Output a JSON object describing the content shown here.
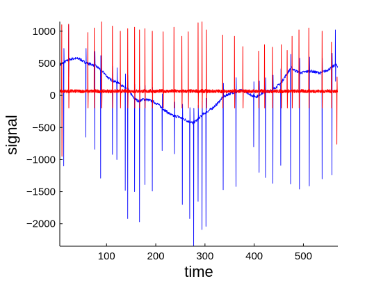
{
  "chart_data": {
    "type": "line",
    "title": "",
    "xlabel": "time",
    "ylabel": "signal",
    "xlim": [
      5,
      570
    ],
    "ylim": [
      -2350,
      1150
    ],
    "xticks": [
      100,
      200,
      300,
      400,
      500
    ],
    "yticks": [
      1000,
      500,
      0,
      -500,
      -1000,
      -1500,
      -2000
    ],
    "xtick_labels": [
      "100",
      "200",
      "300",
      "400",
      "500"
    ],
    "ytick_labels": [
      "1000",
      "500",
      "0",
      "−500",
      "−1000",
      "−1500",
      "−2000"
    ],
    "grid": false,
    "series": [
      {
        "color": "#0000ff",
        "baseline": {
          "x": [
            5,
            15,
            25,
            35,
            45,
            55,
            65,
            75,
            85,
            95,
            105,
            115,
            125,
            135,
            145,
            155,
            165,
            175,
            185,
            195,
            205,
            215,
            225,
            235,
            245,
            255,
            265,
            275,
            285,
            295,
            305,
            315,
            325,
            335,
            345,
            355,
            365,
            375,
            385,
            395,
            405,
            415,
            425,
            435,
            445,
            455,
            465,
            475,
            485,
            495,
            505,
            515,
            525,
            535,
            545,
            555,
            565,
            570
          ],
          "y": [
            470,
            520,
            560,
            575,
            570,
            520,
            490,
            470,
            420,
            350,
            260,
            220,
            200,
            130,
            80,
            -40,
            -90,
            -60,
            -70,
            -100,
            -140,
            -210,
            -270,
            -320,
            -330,
            -360,
            -400,
            -430,
            -380,
            -300,
            -250,
            -200,
            -130,
            -40,
            10,
            40,
            60,
            80,
            50,
            0,
            -20,
            30,
            60,
            80,
            130,
            200,
            320,
            430,
            380,
            350,
            370,
            380,
            360,
            350,
            380,
            420,
            480,
            450
          ]
        },
        "spikes": [
          {
            "x": 13,
            "y": -1100
          },
          {
            "x": 23,
            "y": 1100
          },
          {
            "x": 58,
            "y": -650
          },
          {
            "x": 76,
            "y": -840
          },
          {
            "x": 88,
            "y": -1290
          },
          {
            "x": 112,
            "y": -920
          },
          {
            "x": 121,
            "y": -1000
          },
          {
            "x": 138,
            "y": -1480
          },
          {
            "x": 143,
            "y": -1920
          },
          {
            "x": 157,
            "y": -1500
          },
          {
            "x": 167,
            "y": -1970
          },
          {
            "x": 178,
            "y": -1390
          },
          {
            "x": 193,
            "y": -1490
          },
          {
            "x": 213,
            "y": -860
          },
          {
            "x": 238,
            "y": -910
          },
          {
            "x": 254,
            "y": -1700
          },
          {
            "x": 269,
            "y": -1920
          },
          {
            "x": 277,
            "y": -2350
          },
          {
            "x": 286,
            "y": -1650
          },
          {
            "x": 294,
            "y": -2090
          },
          {
            "x": 302,
            "y": -2040
          },
          {
            "x": 337,
            "y": -1470
          },
          {
            "x": 363,
            "y": -1420
          },
          {
            "x": 399,
            "y": -800
          },
          {
            "x": 410,
            "y": -1200
          },
          {
            "x": 423,
            "y": -1280
          },
          {
            "x": 438,
            "y": -1370
          },
          {
            "x": 454,
            "y": -1090
          },
          {
            "x": 474,
            "y": -1380
          },
          {
            "x": 492,
            "y": -1460
          },
          {
            "x": 512,
            "y": -1410
          },
          {
            "x": 538,
            "y": -1300
          },
          {
            "x": 558,
            "y": -1240
          },
          {
            "x": 565,
            "y": 1020
          }
        ]
      },
      {
        "color": "#ff0000",
        "baseline_level": 65,
        "noise_amplitude": 28,
        "spikes": [
          {
            "x": 9,
            "y": 1100,
            "trough": -950
          },
          {
            "x": 23,
            "y": 1110
          },
          {
            "x": 62,
            "y": 980
          },
          {
            "x": 75,
            "y": 1050
          },
          {
            "x": 90,
            "y": 1160
          },
          {
            "x": 112,
            "y": 1080
          },
          {
            "x": 128,
            "y": 1000
          },
          {
            "x": 143,
            "y": 1040
          },
          {
            "x": 157,
            "y": 1060
          },
          {
            "x": 167,
            "y": 1020
          },
          {
            "x": 178,
            "y": 1040
          },
          {
            "x": 193,
            "y": 1000
          },
          {
            "x": 215,
            "y": 990
          },
          {
            "x": 237,
            "y": 1060
          },
          {
            "x": 253,
            "y": 920
          },
          {
            "x": 266,
            "y": 990
          },
          {
            "x": 286,
            "y": 1130
          },
          {
            "x": 294,
            "y": 1160
          },
          {
            "x": 303,
            "y": 1020
          },
          {
            "x": 336,
            "y": 940
          },
          {
            "x": 360,
            "y": 920
          },
          {
            "x": 377,
            "y": 760
          },
          {
            "x": 409,
            "y": 690
          },
          {
            "x": 421,
            "y": 790
          },
          {
            "x": 437,
            "y": 750
          },
          {
            "x": 455,
            "y": 790
          },
          {
            "x": 467,
            "y": 700
          },
          {
            "x": 477,
            "y": 920
          },
          {
            "x": 491,
            "y": 1020
          },
          {
            "x": 511,
            "y": 1050
          },
          {
            "x": 538,
            "y": 1000
          },
          {
            "x": 557,
            "y": 830
          },
          {
            "x": 568,
            "y": -760
          }
        ]
      }
    ]
  }
}
